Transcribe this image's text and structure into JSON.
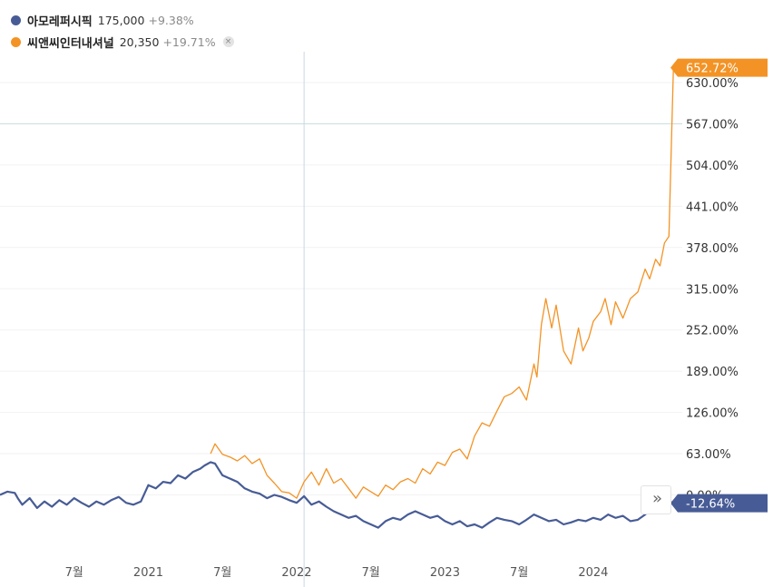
{
  "legend": [
    {
      "name": "아모레퍼시픽",
      "price": "175,000",
      "change": "+9.38%",
      "color": "#475c96",
      "removable": false
    },
    {
      "name": "씨앤씨인터내셔널",
      "price": "20,350",
      "change": "+19.71%",
      "color": "#f39325",
      "removable": true
    }
  ],
  "remove_icon": "×",
  "scroll_icon": "»",
  "chart_data": {
    "type": "line",
    "y_unit": "%",
    "y_ticks": [
      0,
      63,
      126,
      189,
      252,
      315,
      378,
      441,
      504,
      567,
      630
    ],
    "y_tick_labels": [
      "0.00%",
      "63.00%",
      "126.00%",
      "189.00%",
      "252.00%",
      "315.00%",
      "378.00%",
      "441.00%",
      "504.00%",
      "567.00%",
      "630.00%"
    ],
    "x_labels": [
      "7월",
      "2021",
      "7월",
      "2022",
      "7월",
      "2023",
      "7월",
      "2024"
    ],
    "x_range": [
      2020.0,
      2024.6
    ],
    "x_label_positions": [
      2020.5,
      2021.0,
      2021.5,
      2022.0,
      2022.5,
      2023.0,
      2023.5,
      2024.0
    ],
    "crosshair_x": 2022.05,
    "crosshair_y": 567,
    "series": [
      {
        "name": "씨앤씨인터내셔널",
        "color": "#f39325",
        "last_label": "652.72%",
        "points": [
          [
            2021.42,
            63
          ],
          [
            2021.45,
            78
          ],
          [
            2021.5,
            62
          ],
          [
            2021.55,
            58
          ],
          [
            2021.6,
            52
          ],
          [
            2021.65,
            60
          ],
          [
            2021.7,
            48
          ],
          [
            2021.75,
            55
          ],
          [
            2021.8,
            30
          ],
          [
            2021.85,
            18
          ],
          [
            2021.9,
            5
          ],
          [
            2021.95,
            3
          ],
          [
            2022.0,
            -5
          ],
          [
            2022.05,
            20
          ],
          [
            2022.1,
            35
          ],
          [
            2022.15,
            15
          ],
          [
            2022.2,
            40
          ],
          [
            2022.25,
            18
          ],
          [
            2022.3,
            25
          ],
          [
            2022.35,
            10
          ],
          [
            2022.4,
            -5
          ],
          [
            2022.45,
            12
          ],
          [
            2022.5,
            5
          ],
          [
            2022.55,
            -2
          ],
          [
            2022.6,
            15
          ],
          [
            2022.65,
            8
          ],
          [
            2022.7,
            20
          ],
          [
            2022.75,
            25
          ],
          [
            2022.8,
            18
          ],
          [
            2022.85,
            40
          ],
          [
            2022.9,
            32
          ],
          [
            2022.95,
            50
          ],
          [
            2023.0,
            45
          ],
          [
            2023.05,
            65
          ],
          [
            2023.1,
            70
          ],
          [
            2023.15,
            55
          ],
          [
            2023.2,
            90
          ],
          [
            2023.25,
            110
          ],
          [
            2023.3,
            105
          ],
          [
            2023.35,
            128
          ],
          [
            2023.4,
            150
          ],
          [
            2023.45,
            155
          ],
          [
            2023.5,
            165
          ],
          [
            2023.55,
            145
          ],
          [
            2023.6,
            200
          ],
          [
            2023.62,
            180
          ],
          [
            2023.65,
            260
          ],
          [
            2023.68,
            300
          ],
          [
            2023.72,
            255
          ],
          [
            2023.75,
            290
          ],
          [
            2023.8,
            220
          ],
          [
            2023.85,
            200
          ],
          [
            2023.9,
            255
          ],
          [
            2023.93,
            220
          ],
          [
            2023.97,
            240
          ],
          [
            2024.0,
            265
          ],
          [
            2024.05,
            280
          ],
          [
            2024.08,
            300
          ],
          [
            2024.12,
            260
          ],
          [
            2024.15,
            295
          ],
          [
            2024.2,
            270
          ],
          [
            2024.25,
            300
          ],
          [
            2024.3,
            310
          ],
          [
            2024.35,
            345
          ],
          [
            2024.38,
            330
          ],
          [
            2024.42,
            360
          ],
          [
            2024.45,
            350
          ],
          [
            2024.48,
            385
          ],
          [
            2024.51,
            395
          ],
          [
            2024.54,
            650
          ],
          [
            2024.56,
            652.72
          ]
        ]
      },
      {
        "name": "아모레퍼시픽",
        "color": "#475c96",
        "last_label": "-12.64%",
        "points": [
          [
            2020.0,
            0
          ],
          [
            2020.05,
            5
          ],
          [
            2020.1,
            3
          ],
          [
            2020.12,
            -5
          ],
          [
            2020.15,
            -15
          ],
          [
            2020.2,
            -5
          ],
          [
            2020.25,
            -20
          ],
          [
            2020.3,
            -10
          ],
          [
            2020.35,
            -18
          ],
          [
            2020.4,
            -8
          ],
          [
            2020.45,
            -15
          ],
          [
            2020.5,
            -5
          ],
          [
            2020.55,
            -12
          ],
          [
            2020.6,
            -18
          ],
          [
            2020.65,
            -10
          ],
          [
            2020.7,
            -15
          ],
          [
            2020.75,
            -8
          ],
          [
            2020.8,
            -3
          ],
          [
            2020.85,
            -12
          ],
          [
            2020.9,
            -15
          ],
          [
            2020.95,
            -10
          ],
          [
            2021.0,
            15
          ],
          [
            2021.05,
            10
          ],
          [
            2021.1,
            20
          ],
          [
            2021.15,
            18
          ],
          [
            2021.2,
            30
          ],
          [
            2021.25,
            25
          ],
          [
            2021.3,
            35
          ],
          [
            2021.35,
            40
          ],
          [
            2021.38,
            45
          ],
          [
            2021.42,
            50
          ],
          [
            2021.45,
            48
          ],
          [
            2021.5,
            30
          ],
          [
            2021.55,
            25
          ],
          [
            2021.6,
            20
          ],
          [
            2021.65,
            10
          ],
          [
            2021.7,
            5
          ],
          [
            2021.75,
            2
          ],
          [
            2021.8,
            -5
          ],
          [
            2021.85,
            0
          ],
          [
            2021.9,
            -3
          ],
          [
            2021.95,
            -8
          ],
          [
            2022.0,
            -12
          ],
          [
            2022.05,
            -2
          ],
          [
            2022.1,
            -15
          ],
          [
            2022.15,
            -10
          ],
          [
            2022.2,
            -18
          ],
          [
            2022.25,
            -25
          ],
          [
            2022.3,
            -30
          ],
          [
            2022.35,
            -35
          ],
          [
            2022.4,
            -32
          ],
          [
            2022.45,
            -40
          ],
          [
            2022.5,
            -45
          ],
          [
            2022.55,
            -50
          ],
          [
            2022.6,
            -40
          ],
          [
            2022.65,
            -35
          ],
          [
            2022.7,
            -38
          ],
          [
            2022.75,
            -30
          ],
          [
            2022.8,
            -25
          ],
          [
            2022.85,
            -30
          ],
          [
            2022.9,
            -35
          ],
          [
            2022.95,
            -32
          ],
          [
            2023.0,
            -40
          ],
          [
            2023.05,
            -45
          ],
          [
            2023.1,
            -40
          ],
          [
            2023.15,
            -48
          ],
          [
            2023.2,
            -45
          ],
          [
            2023.25,
            -50
          ],
          [
            2023.3,
            -42
          ],
          [
            2023.35,
            -35
          ],
          [
            2023.4,
            -38
          ],
          [
            2023.45,
            -40
          ],
          [
            2023.5,
            -45
          ],
          [
            2023.55,
            -38
          ],
          [
            2023.6,
            -30
          ],
          [
            2023.65,
            -35
          ],
          [
            2023.7,
            -40
          ],
          [
            2023.75,
            -38
          ],
          [
            2023.8,
            -45
          ],
          [
            2023.85,
            -42
          ],
          [
            2023.9,
            -38
          ],
          [
            2023.95,
            -40
          ],
          [
            2024.0,
            -35
          ],
          [
            2024.05,
            -38
          ],
          [
            2024.1,
            -30
          ],
          [
            2024.15,
            -35
          ],
          [
            2024.2,
            -32
          ],
          [
            2024.25,
            -40
          ],
          [
            2024.3,
            -38
          ],
          [
            2024.35,
            -30
          ],
          [
            2024.4,
            -20
          ],
          [
            2024.45,
            -15
          ],
          [
            2024.5,
            -10
          ],
          [
            2024.56,
            -12.64
          ]
        ]
      }
    ]
  }
}
